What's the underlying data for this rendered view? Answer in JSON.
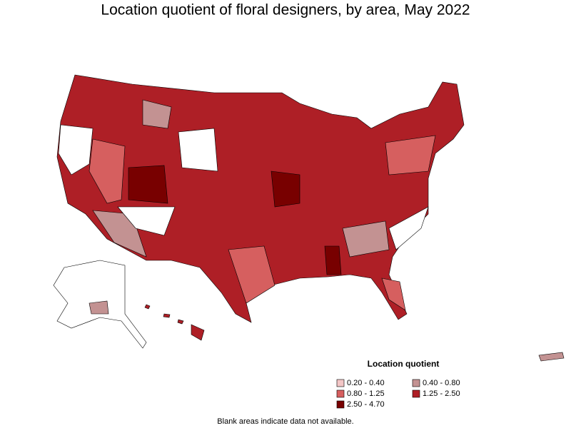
{
  "title": "Location quotient of floral designers, by area, May 2022",
  "legend": {
    "title": "Location quotient",
    "items": [
      {
        "label": "0.20 - 0.40",
        "color": "#f3c6c6"
      },
      {
        "label": "0.40 - 0.80",
        "color": "#c39292"
      },
      {
        "label": "0.80 - 1.25",
        "color": "#d65f5f"
      },
      {
        "label": "1.25 - 2.50",
        "color": "#ae1f26"
      },
      {
        "label": "2.50 - 4.70",
        "color": "#780000"
      }
    ]
  },
  "footnote": "Blank areas indicate data not available."
}
